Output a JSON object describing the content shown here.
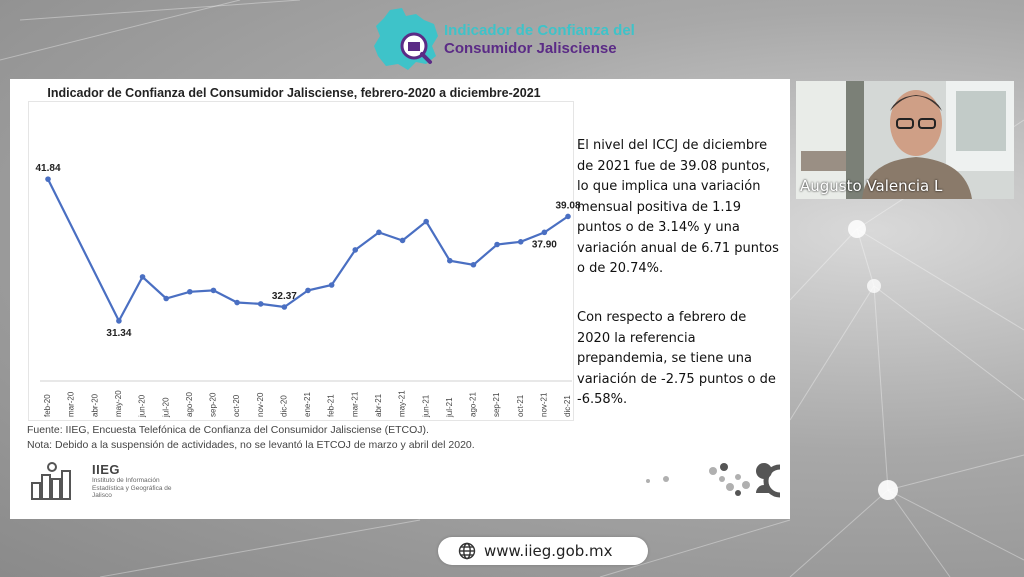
{
  "header": {
    "logo_line1": "Indicador de Confianza del",
    "logo_line2": "Consumidor Jalisciense"
  },
  "slide": {
    "paragraph_1": "El nivel del ICCJ de diciembre de 2021 fue de 39.08 puntos, lo que implica una variación mensual positiva de 1.19 puntos o de 3.14% y una variación anual de 6.71 puntos o de 20.74%.",
    "paragraph_2": "Con respecto a febrero de 2020 la referencia prepandemia, se tiene una variación de -2.75 puntos o de -6.58%.",
    "footnote_source": "Fuente: IIEG, Encuesta Telefónica de Confianza del Consumidor Jalisciense (ETCOJ).",
    "footnote_note": "Nota: Debido a la suspensión de actividades, no se levantó la ETCOJ de marzo y abril del 2020.",
    "iieg_logo_title": "IIEG",
    "iieg_logo_subtitle": "Instituto de Información Estadística y Geográfica de Jalisco"
  },
  "chart_data": {
    "type": "line",
    "title": "Indicador de Confianza del Consumidor Jalisciense, febrero-2020 a diciembre-2021",
    "xlabel": "",
    "ylabel": "",
    "categories": [
      "feb-20",
      "mar-20",
      "abr-20",
      "may-20",
      "jun-20",
      "jul-20",
      "ago-20",
      "sep-20",
      "oct-20",
      "nov-20",
      "dic-20",
      "ene-21",
      "feb-21",
      "mar-21",
      "abr-21",
      "may-21",
      "jun-21",
      "jul-21",
      "ago-21",
      "sep-21",
      "oct-21",
      "nov-21",
      "dic-21"
    ],
    "series": [
      {
        "values": [
          41.84,
          null,
          null,
          31.34,
          34.6,
          33.0,
          33.5,
          33.6,
          32.7,
          32.6,
          32.37,
          33.6,
          34.0,
          36.6,
          37.9,
          37.3,
          38.7,
          35.8,
          35.5,
          37.0,
          37.2,
          37.9,
          39.08
        ],
        "color": "#4a6fc2"
      }
    ],
    "data_labels": [
      {
        "category": "feb-20",
        "text": "41.84"
      },
      {
        "category": "may-20",
        "text": "31.34"
      },
      {
        "category": "dic-20",
        "text": "32.37"
      },
      {
        "category": "nov-21",
        "text": "37.90"
      },
      {
        "category": "dic-21",
        "text": "39.08"
      }
    ],
    "ylim": [
      0,
      44
    ],
    "grid": false,
    "legend": "none"
  },
  "video": {
    "participant_name": "Augusto Valencia L"
  },
  "footer": {
    "url": "www.iieg.gob.mx"
  }
}
